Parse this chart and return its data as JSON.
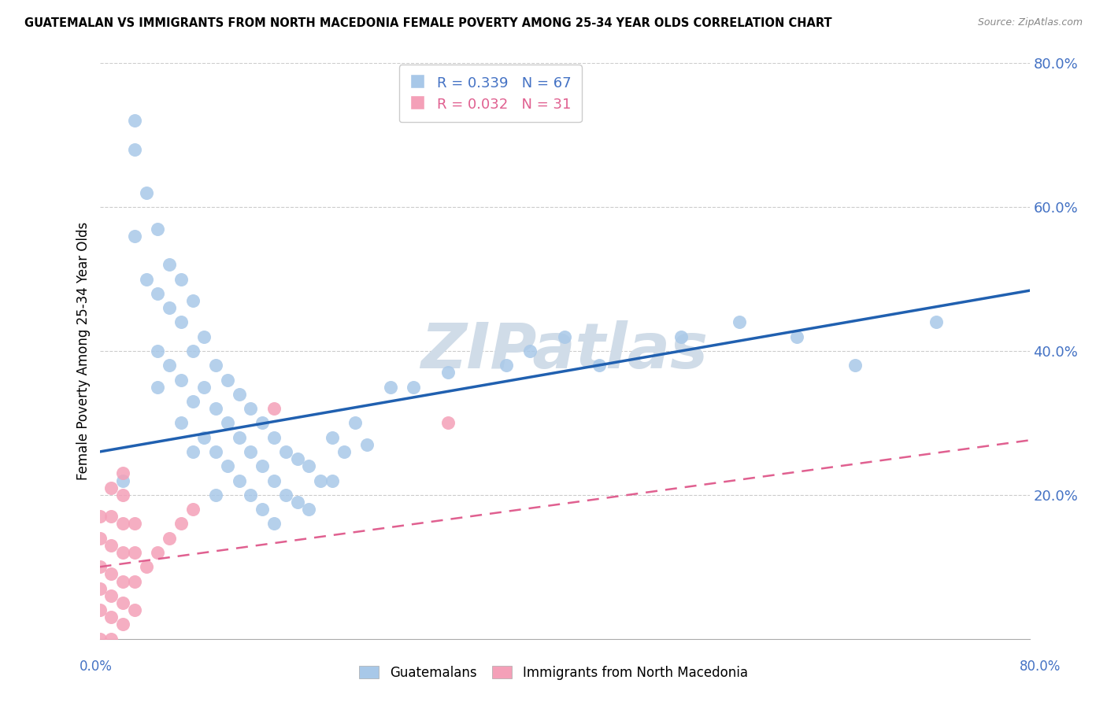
{
  "title": "GUATEMALAN VS IMMIGRANTS FROM NORTH MACEDONIA FEMALE POVERTY AMONG 25-34 YEAR OLDS CORRELATION CHART",
  "source": "Source: ZipAtlas.com",
  "ylabel": "Female Poverty Among 25-34 Year Olds",
  "xlim": [
    0.0,
    0.8
  ],
  "ylim": [
    0.0,
    0.8
  ],
  "guatemalan_R": 0.339,
  "guatemalan_N": 67,
  "macedonia_R": 0.032,
  "macedonia_N": 31,
  "blue_color": "#a8c8e8",
  "pink_color": "#f4a0b8",
  "blue_line_color": "#2060b0",
  "pink_line_color": "#e06090",
  "legend_blue_text_color": "#4472c4",
  "legend_pink_text_color": "#e06090",
  "watermark_color": "#d0dce8",
  "guatemalan_x": [
    0.02,
    0.03,
    0.03,
    0.03,
    0.04,
    0.04,
    0.05,
    0.05,
    0.05,
    0.05,
    0.06,
    0.06,
    0.06,
    0.07,
    0.07,
    0.07,
    0.07,
    0.08,
    0.08,
    0.08,
    0.08,
    0.09,
    0.09,
    0.09,
    0.1,
    0.1,
    0.1,
    0.1,
    0.11,
    0.11,
    0.11,
    0.12,
    0.12,
    0.12,
    0.13,
    0.13,
    0.13,
    0.14,
    0.14,
    0.14,
    0.15,
    0.15,
    0.15,
    0.16,
    0.16,
    0.17,
    0.17,
    0.18,
    0.18,
    0.19,
    0.2,
    0.2,
    0.21,
    0.22,
    0.23,
    0.25,
    0.27,
    0.3,
    0.35,
    0.37,
    0.4,
    0.43,
    0.5,
    0.55,
    0.6,
    0.65,
    0.72
  ],
  "guatemalan_y": [
    0.22,
    0.68,
    0.72,
    0.56,
    0.62,
    0.5,
    0.57,
    0.48,
    0.4,
    0.35,
    0.52,
    0.46,
    0.38,
    0.5,
    0.44,
    0.36,
    0.3,
    0.47,
    0.4,
    0.33,
    0.26,
    0.42,
    0.35,
    0.28,
    0.38,
    0.32,
    0.26,
    0.2,
    0.36,
    0.3,
    0.24,
    0.34,
    0.28,
    0.22,
    0.32,
    0.26,
    0.2,
    0.3,
    0.24,
    0.18,
    0.28,
    0.22,
    0.16,
    0.26,
    0.2,
    0.25,
    0.19,
    0.24,
    0.18,
    0.22,
    0.28,
    0.22,
    0.26,
    0.3,
    0.27,
    0.35,
    0.35,
    0.37,
    0.38,
    0.4,
    0.42,
    0.38,
    0.42,
    0.44,
    0.42,
    0.38,
    0.44
  ],
  "macedonia_x": [
    0.0,
    0.0,
    0.0,
    0.0,
    0.0,
    0.0,
    0.01,
    0.01,
    0.01,
    0.01,
    0.01,
    0.01,
    0.01,
    0.02,
    0.02,
    0.02,
    0.02,
    0.02,
    0.02,
    0.02,
    0.03,
    0.03,
    0.03,
    0.03,
    0.04,
    0.05,
    0.06,
    0.07,
    0.08,
    0.15,
    0.3
  ],
  "macedonia_y": [
    0.0,
    0.04,
    0.07,
    0.1,
    0.14,
    0.17,
    0.0,
    0.03,
    0.06,
    0.09,
    0.13,
    0.17,
    0.21,
    0.02,
    0.05,
    0.08,
    0.12,
    0.16,
    0.2,
    0.23,
    0.04,
    0.08,
    0.12,
    0.16,
    0.1,
    0.12,
    0.14,
    0.16,
    0.18,
    0.32,
    0.3
  ],
  "blue_intercept": 0.26,
  "blue_slope": 0.28,
  "pink_intercept": 0.1,
  "pink_slope": 0.22
}
